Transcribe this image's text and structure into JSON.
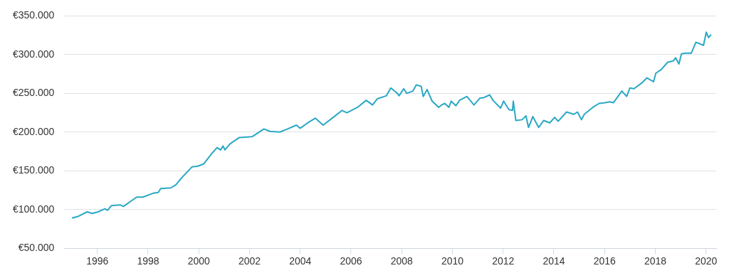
{
  "chart_data": {
    "type": "line",
    "grid": "y",
    "marker": "none",
    "line_style": "solid",
    "legend": false,
    "xlim": [
      1994.7,
      2020.4
    ],
    "xticks": [
      1996,
      1998,
      2000,
      2002,
      2004,
      2006,
      2008,
      2010,
      2012,
      2014,
      2016,
      2018,
      2020
    ],
    "ylim": [
      50000,
      350000
    ],
    "yticks": [
      {
        "value": 50000,
        "label": "€50.000"
      },
      {
        "value": 100000,
        "label": "€100.000"
      },
      {
        "value": 150000,
        "label": "€150.000"
      },
      {
        "value": 200000,
        "label": "€200.000"
      },
      {
        "value": 250000,
        "label": "€250.000"
      },
      {
        "value": 300000,
        "label": "€300.000"
      },
      {
        "value": 350000,
        "label": "€350.000"
      }
    ],
    "series": [
      {
        "color": "#2aa8c4",
        "x": [
          1995.0,
          1995.23,
          1995.6,
          1995.8,
          1996.03,
          1996.3,
          1996.4,
          1996.55,
          1996.9,
          1997.03,
          1997.55,
          1997.8,
          1998.2,
          1998.4,
          1998.5,
          1998.9,
          1999.1,
          1999.3,
          1999.73,
          1999.96,
          2000.2,
          2000.53,
          2000.72,
          2000.86,
          2000.96,
          2001.03,
          2001.24,
          2001.6,
          2002.1,
          2002.57,
          2002.8,
          2003.2,
          2003.5,
          2003.85,
          2004.0,
          2004.3,
          2004.6,
          2004.9,
          2005.3,
          2005.65,
          2005.84,
          2006.26,
          2006.6,
          2006.85,
          2007.04,
          2007.4,
          2007.57,
          2007.8,
          2007.9,
          2008.08,
          2008.2,
          2008.44,
          2008.58,
          2008.77,
          2008.85,
          2009.0,
          2009.2,
          2009.46,
          2009.57,
          2009.7,
          2009.86,
          2009.95,
          2010.14,
          2010.28,
          2010.57,
          2010.85,
          2011.09,
          2011.2,
          2011.47,
          2011.6,
          2011.9,
          2012.02,
          2012.23,
          2012.37,
          2012.4,
          2012.5,
          2012.75,
          2012.9,
          2013.0,
          2013.17,
          2013.4,
          2013.6,
          2013.84,
          2014.03,
          2014.17,
          2014.5,
          2014.79,
          2014.93,
          2015.09,
          2015.2,
          2015.54,
          2015.78,
          2016.01,
          2016.2,
          2016.35,
          2016.68,
          2016.87,
          2017.0,
          2017.16,
          2017.45,
          2017.67,
          2017.93,
          2018.02,
          2018.24,
          2018.48,
          2018.71,
          2018.8,
          2018.93,
          2019.03,
          2019.19,
          2019.42,
          2019.6,
          2019.9,
          2020.01,
          2020.1,
          2020.2
        ],
        "values": [
          89000,
          91000,
          97000,
          95000,
          97000,
          101000,
          99000,
          105000,
          106000,
          104000,
          116000,
          116000,
          121000,
          122000,
          127000,
          128000,
          132000,
          140000,
          155000,
          156000,
          159000,
          173000,
          180000,
          177000,
          182000,
          177000,
          185000,
          193000,
          194000,
          204000,
          201000,
          200000,
          204000,
          209000,
          205000,
          212000,
          218000,
          209000,
          219000,
          228000,
          225000,
          232000,
          241000,
          235000,
          243000,
          247000,
          257000,
          251000,
          247000,
          256000,
          250000,
          253000,
          261000,
          259000,
          246000,
          255000,
          240000,
          232000,
          235000,
          237000,
          232000,
          240000,
          234000,
          241000,
          246000,
          235000,
          244000,
          244000,
          248000,
          241000,
          231000,
          240000,
          229000,
          228000,
          240000,
          215000,
          216000,
          221000,
          206000,
          220000,
          206000,
          215000,
          212000,
          219000,
          214000,
          226000,
          223000,
          226000,
          216000,
          223000,
          232000,
          237000,
          238000,
          239000,
          238000,
          253000,
          246000,
          257000,
          256000,
          263000,
          270000,
          265000,
          276000,
          281000,
          290000,
          292000,
          296000,
          288000,
          301000,
          302000,
          302000,
          316000,
          312000,
          329000,
          322000,
          326000
        ]
      }
    ]
  }
}
